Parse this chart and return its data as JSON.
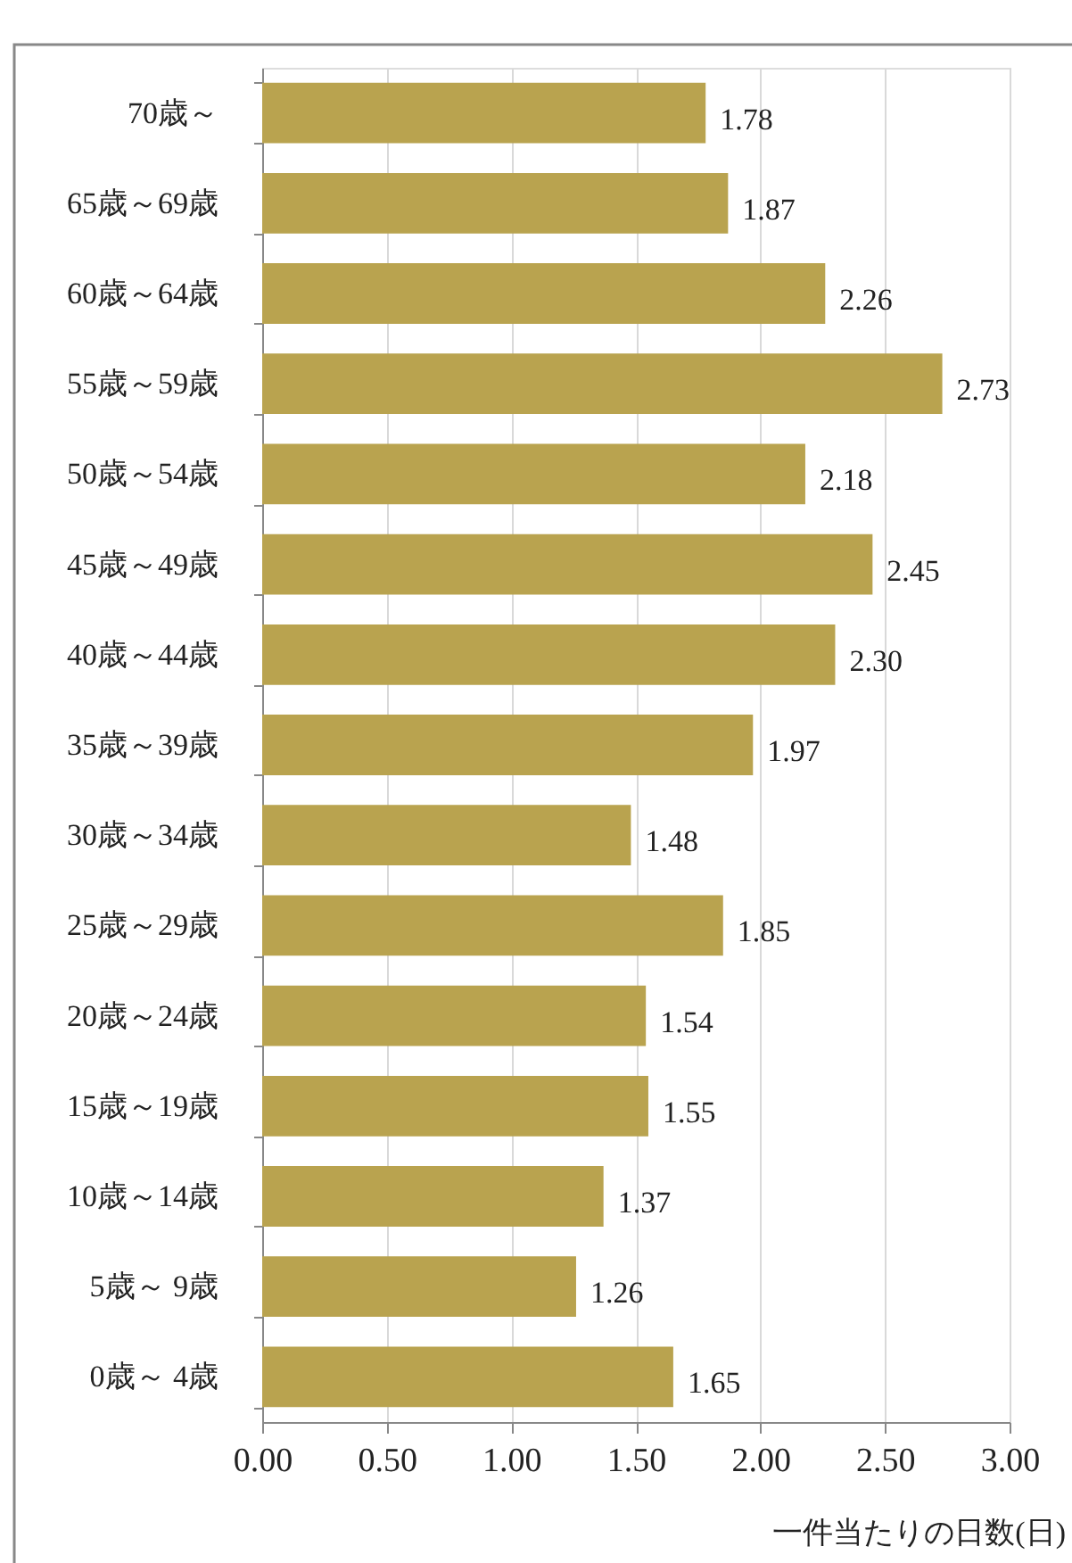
{
  "chart_data": {
    "type": "bar",
    "orientation": "horizontal",
    "categories": [
      "70歳～",
      "65歳～69歳",
      "60歳～64歳",
      "55歳～59歳",
      "50歳～54歳",
      "45歳～49歳",
      "40歳～44歳",
      "35歳～39歳",
      "30歳～34歳",
      "25歳～29歳",
      "20歳～24歳",
      "15歳～19歳",
      "10歳～14歳",
      "5歳～ 9歳",
      "0歳～ 4歳"
    ],
    "values": [
      1.78,
      1.87,
      2.26,
      2.73,
      2.18,
      2.45,
      2.3,
      1.97,
      1.48,
      1.85,
      1.54,
      1.55,
      1.37,
      1.26,
      1.65
    ],
    "value_labels": [
      "1.78",
      "1.87",
      "2.26",
      "2.73",
      "2.18",
      "2.45",
      "2.30",
      "1.97",
      "1.48",
      "1.85",
      "1.54",
      "1.55",
      "1.37",
      "1.26",
      "1.65"
    ],
    "color": "#b9a34f",
    "xlim": [
      0,
      3
    ],
    "xticks": [
      {
        "value": 0,
        "label": "0.00"
      },
      {
        "value": 0.5,
        "label": "0.50"
      },
      {
        "value": 1,
        "label": "1.00"
      },
      {
        "value": 1.5,
        "label": "1.50"
      },
      {
        "value": 2,
        "label": "2.00"
      },
      {
        "value": 2.5,
        "label": "2.50"
      },
      {
        "value": 3,
        "label": "3.00"
      }
    ],
    "xlabel": "一件当たりの日数(日)",
    "grid": "x"
  }
}
